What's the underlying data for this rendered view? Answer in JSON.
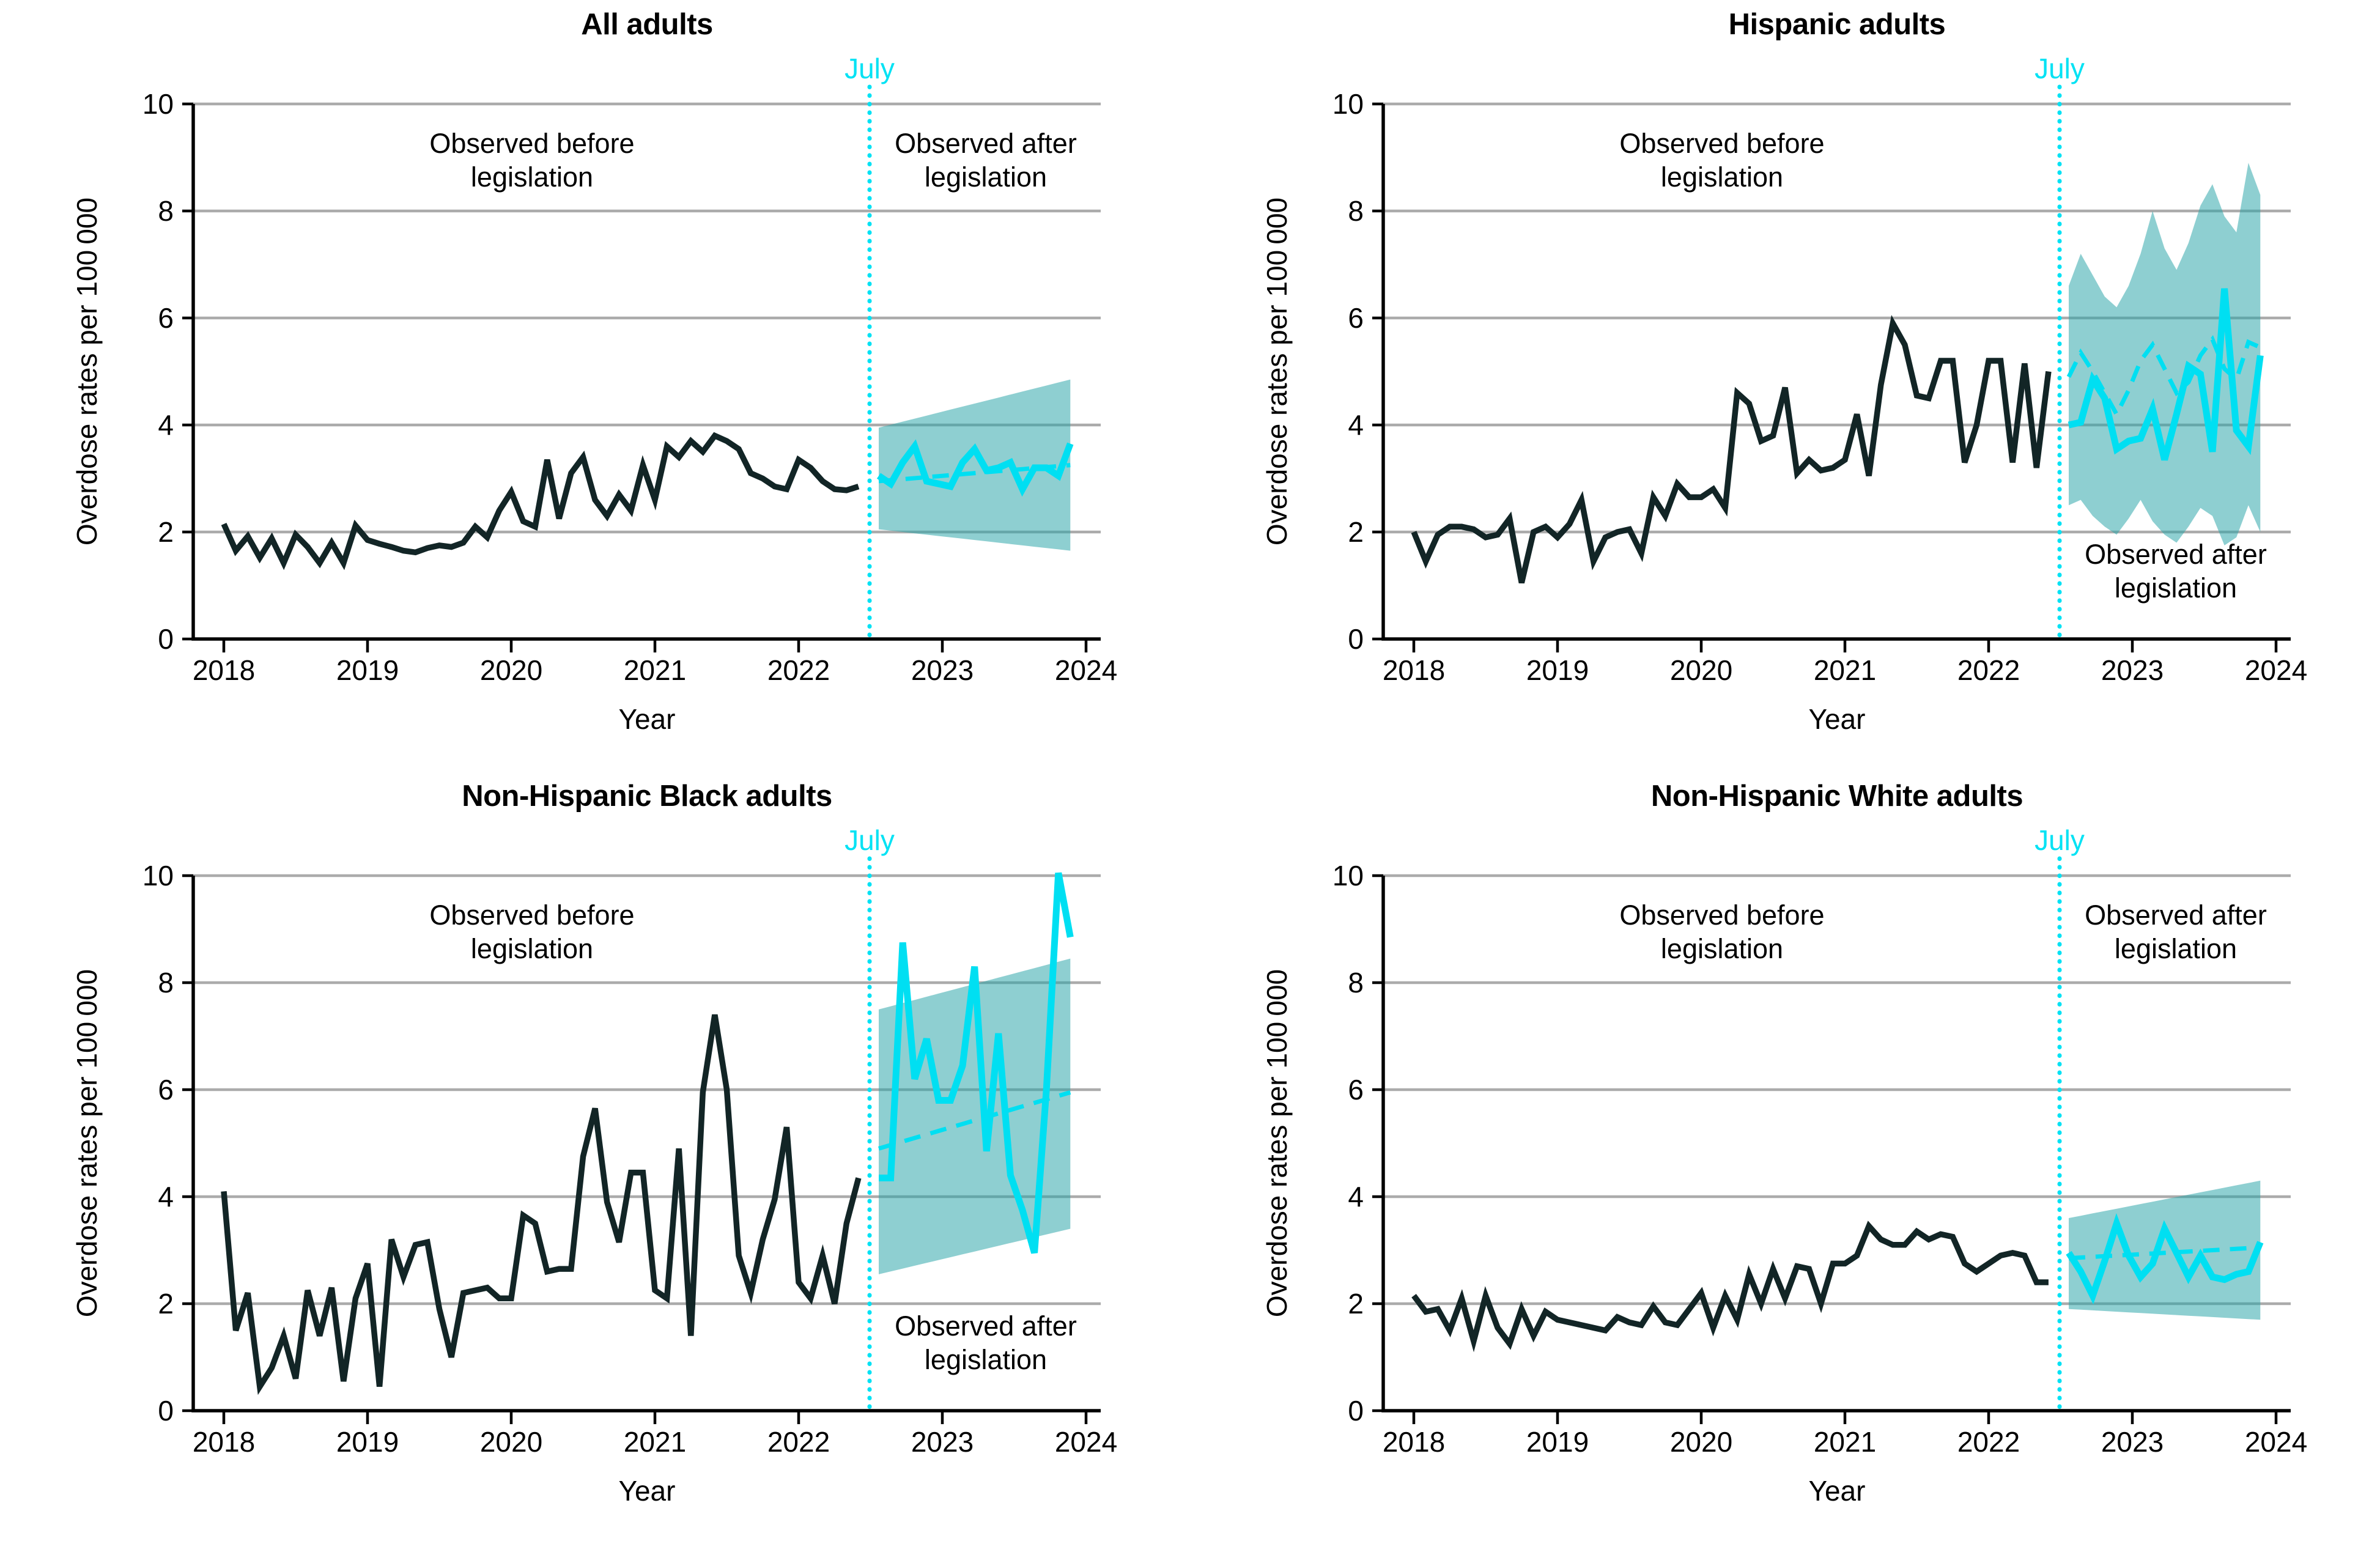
{
  "figure": {
    "y_axis_label": "Overdose rates per 100 000",
    "x_axis_label": "Year",
    "y_ticks": [
      0,
      2,
      4,
      6,
      8,
      10
    ],
    "x_ticks": [
      2018,
      2019,
      2020,
      2021,
      2022,
      2023,
      2024
    ],
    "july_label": "July",
    "before_annotation": [
      "Observed before",
      "legislation"
    ],
    "after_annotation": [
      "Observed after",
      "legislation"
    ],
    "colors": {
      "observed_line": "#122526",
      "after_line": "#00dff2",
      "predicted_line": "#00dff2",
      "ci_band": "rgba(38,163,166,0.52)",
      "gridline": "#ababab",
      "axis": "#000000",
      "july": "#00e2f4"
    }
  },
  "chart_data": [
    {
      "type": "line",
      "title": "All adults",
      "ylabel": "Overdose rates per 100 000",
      "xlabel": "Year",
      "ylim": [
        0,
        10
      ],
      "xlim": [
        2018,
        2024
      ],
      "legislation_marker": {
        "label": "July",
        "x": 2022.54
      },
      "after_label_position": "top",
      "series": {
        "observed_before": {
          "start": "2018-01",
          "end": "2022-06",
          "values": [
            2.15,
            1.65,
            1.92,
            1.52,
            1.88,
            1.42,
            1.95,
            1.72,
            1.42,
            1.8,
            1.42,
            2.12,
            1.85,
            1.78,
            1.72,
            1.65,
            1.62,
            1.7,
            1.75,
            1.72,
            1.8,
            2.1,
            1.9,
            2.4,
            2.75,
            2.2,
            2.1,
            3.35,
            2.25,
            3.1,
            3.4,
            2.6,
            2.3,
            2.7,
            2.4,
            3.25,
            2.6,
            3.6,
            3.4,
            3.7,
            3.5,
            3.8,
            3.7,
            3.55,
            3.1,
            3.0,
            2.85,
            2.8,
            3.35,
            3.2,
            2.95,
            2.8,
            2.78,
            2.85
          ]
        },
        "observed_after": {
          "start": "2022-07",
          "end": "2023-11",
          "values": [
            3.05,
            2.9,
            3.3,
            3.6,
            2.95,
            2.9,
            2.85,
            3.3,
            3.55,
            3.15,
            3.2,
            3.3,
            2.8,
            3.2,
            3.2,
            3.05,
            3.65
          ]
        },
        "predicted": {
          "start": 2.95,
          "end": 3.25
        },
        "ci_band": {
          "top": {
            "start": 3.95,
            "end": 4.85
          },
          "bottom": {
            "start": 2.05,
            "end": 1.65
          }
        }
      }
    },
    {
      "type": "line",
      "title": "Hispanic adults",
      "ylabel": "Overdose rates per 100 000",
      "xlabel": "Year",
      "ylim": [
        0,
        10
      ],
      "xlim": [
        2018,
        2024
      ],
      "legislation_marker": {
        "label": "July",
        "x": 2022.54
      },
      "after_label_position": "bottom",
      "series": {
        "observed_before": {
          "start": "2018-01",
          "end": "2022-06",
          "values": [
            2.0,
            1.45,
            1.95,
            2.1,
            2.1,
            2.05,
            1.9,
            1.95,
            2.25,
            1.05,
            2.0,
            2.1,
            1.9,
            2.15,
            2.6,
            1.45,
            1.9,
            2.0,
            2.05,
            1.6,
            2.65,
            2.3,
            2.9,
            2.65,
            2.65,
            2.8,
            2.45,
            4.6,
            4.4,
            3.7,
            3.8,
            4.7,
            3.1,
            3.35,
            3.15,
            3.2,
            3.35,
            4.2,
            3.05,
            4.75,
            5.9,
            5.5,
            4.55,
            4.5,
            5.2,
            5.2,
            3.3,
            4.0,
            5.2,
            5.2,
            3.3,
            5.15,
            3.2,
            5.0
          ]
        },
        "observed_after": {
          "start": "2022-07",
          "end": "2023-11",
          "values": [
            4.0,
            4.05,
            4.85,
            4.5,
            3.55,
            3.7,
            3.75,
            4.3,
            3.35,
            4.2,
            5.1,
            4.95,
            3.5,
            6.55,
            3.9,
            3.6,
            5.3
          ]
        },
        "predicted": {
          "values": [
            4.9,
            5.35,
            5.0,
            4.6,
            4.2,
            4.65,
            5.2,
            5.5,
            5.05,
            4.6,
            4.8,
            5.3,
            5.6,
            5.05,
            4.85,
            5.55,
            5.45
          ]
        },
        "ci_band": {
          "top": {
            "values": [
              6.6,
              7.2,
              6.8,
              6.4,
              6.2,
              6.6,
              7.2,
              8.0,
              7.3,
              6.9,
              7.4,
              8.1,
              8.5,
              7.9,
              7.6,
              8.9,
              8.3
            ]
          },
          "bottom": {
            "values": [
              2.5,
              2.6,
              2.3,
              2.1,
              1.95,
              2.25,
              2.6,
              2.2,
              1.95,
              1.8,
              2.1,
              2.45,
              2.3,
              1.75,
              1.9,
              2.5,
              2.0
            ]
          }
        }
      }
    },
    {
      "type": "line",
      "title": "Non-Hispanic Black adults",
      "ylabel": "Overdose rates per 100 000",
      "xlabel": "Year",
      "ylim": [
        0,
        10
      ],
      "xlim": [
        2018,
        2024
      ],
      "legislation_marker": {
        "label": "July",
        "x": 2022.54
      },
      "after_label_position": "bottom",
      "series": {
        "observed_before": {
          "start": "2018-01",
          "end": "2022-06",
          "values": [
            4.1,
            1.5,
            2.2,
            0.45,
            0.8,
            1.4,
            0.6,
            2.25,
            1.4,
            2.3,
            0.55,
            2.1,
            2.75,
            0.45,
            3.2,
            2.5,
            3.1,
            3.15,
            1.9,
            1.0,
            2.2,
            2.25,
            2.3,
            2.1,
            2.1,
            3.65,
            3.5,
            2.6,
            2.65,
            2.65,
            4.75,
            5.65,
            3.9,
            3.15,
            4.45,
            4.45,
            2.25,
            2.1,
            4.9,
            1.4,
            5.95,
            7.4,
            6.0,
            2.9,
            2.2,
            3.2,
            3.95,
            5.3,
            2.4,
            2.1,
            2.9,
            2.0,
            3.5,
            4.35
          ]
        },
        "observed_after": {
          "start": "2022-07",
          "end": "2023-11",
          "values": [
            4.35,
            4.35,
            8.75,
            6.2,
            6.95,
            5.8,
            5.8,
            6.45,
            8.3,
            4.85,
            7.05,
            4.4,
            3.75,
            2.95,
            6.0,
            10.05,
            8.85
          ]
        },
        "predicted": {
          "start": 4.9,
          "end": 5.95
        },
        "ci_band": {
          "top": {
            "start": 7.5,
            "end": 8.45
          },
          "bottom": {
            "start": 2.55,
            "end": 3.4
          }
        }
      }
    },
    {
      "type": "line",
      "title": "Non-Hispanic White adults",
      "ylabel": "Overdose rates per 100 000",
      "xlabel": "Year",
      "ylim": [
        0,
        10
      ],
      "xlim": [
        2018,
        2024
      ],
      "legislation_marker": {
        "label": "July",
        "x": 2022.54
      },
      "after_label_position": "top",
      "series": {
        "observed_before": {
          "start": "2018-01",
          "end": "2022-06",
          "values": [
            2.15,
            1.85,
            1.9,
            1.5,
            2.1,
            1.3,
            2.15,
            1.55,
            1.25,
            1.9,
            1.4,
            1.85,
            1.7,
            1.65,
            1.6,
            1.55,
            1.5,
            1.75,
            1.65,
            1.6,
            1.95,
            1.65,
            1.6,
            1.9,
            2.2,
            1.55,
            2.15,
            1.7,
            2.55,
            2.0,
            2.65,
            2.1,
            2.7,
            2.65,
            2.0,
            2.75,
            2.75,
            2.9,
            3.45,
            3.2,
            3.1,
            3.1,
            3.35,
            3.2,
            3.3,
            3.25,
            2.75,
            2.6,
            2.75,
            2.9,
            2.95,
            2.9,
            2.4,
            2.4
          ]
        },
        "observed_after": {
          "start": "2022-07",
          "end": "2023-11",
          "values": [
            2.95,
            2.6,
            2.15,
            2.8,
            3.5,
            2.9,
            2.5,
            2.75,
            3.4,
            2.95,
            2.5,
            2.9,
            2.5,
            2.45,
            2.55,
            2.6,
            3.15
          ]
        },
        "predicted": {
          "start": 2.85,
          "end": 3.05
        },
        "ci_band": {
          "top": {
            "start": 3.6,
            "end": 4.3
          },
          "bottom": {
            "start": 1.9,
            "end": 1.7
          }
        }
      }
    }
  ]
}
